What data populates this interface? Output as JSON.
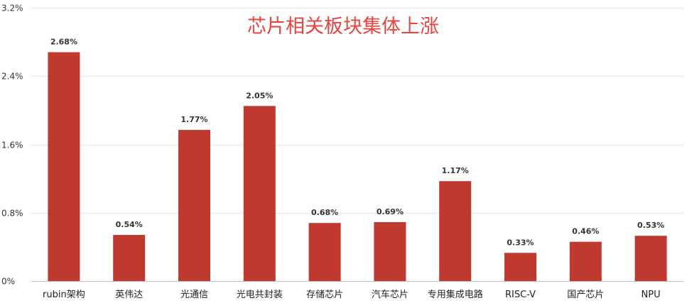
{
  "chart_data": {
    "type": "bar",
    "title": "芯片相关板块集体上涨",
    "xlabel": "",
    "ylabel": "",
    "categories": [
      "rubin架构",
      "英伟达",
      "光通信",
      "光电共封装",
      "存储芯片",
      "汽车芯片",
      "专用集成电路",
      "RISC-V",
      "国产芯片",
      "NPU"
    ],
    "values": [
      2.68,
      0.54,
      1.77,
      2.05,
      0.68,
      0.69,
      1.17,
      0.33,
      0.46,
      0.53
    ],
    "data_labels": [
      "2.68%",
      "0.54%",
      "1.77%",
      "2.05%",
      "0.68%",
      "0.69%",
      "1.17%",
      "0.33%",
      "0.46%",
      "0.53%"
    ],
    "ylim": [
      0,
      3.2
    ],
    "yticks": [
      0,
      0.8,
      1.6,
      2.4,
      3.2
    ],
    "ytick_labels": [
      "0%",
      "0.8%",
      "1.6%",
      "2.4%",
      "3.2%"
    ],
    "grid": "horizontal",
    "legend": "none",
    "colors": {
      "bar": "#c0392f",
      "title": "#e8433f",
      "grid": "#e4e4e4",
      "axis": "#bfbfbf"
    }
  }
}
